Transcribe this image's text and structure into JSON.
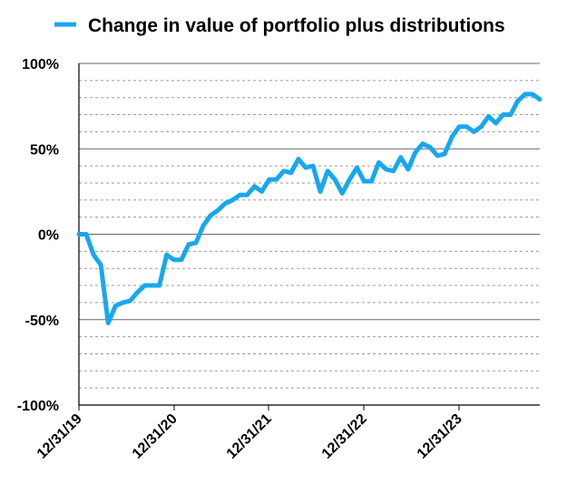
{
  "chart_data": {
    "type": "line",
    "title": "",
    "xlabel": "",
    "ylabel": "",
    "legend": {
      "position": "top",
      "entries": [
        "Change in value of portfolio plus distributions"
      ]
    },
    "series": [
      {
        "name": "Change in value of portfolio plus distributions",
        "color": "#18a7f0",
        "values": [
          0,
          0,
          -12,
          -18,
          -52,
          -42,
          -40,
          -39,
          -34,
          -30,
          -30,
          -30,
          -12,
          -15,
          -15,
          -6,
          -5,
          5,
          11,
          14,
          18,
          20,
          23,
          23,
          28,
          25,
          32,
          32,
          37,
          36,
          44,
          39,
          40,
          25,
          37,
          32,
          24,
          32,
          39,
          31,
          31,
          42,
          38,
          37,
          45,
          38,
          48,
          53,
          51,
          46,
          47,
          57,
          63,
          63,
          60,
          63,
          69,
          65,
          70,
          70,
          78,
          82,
          82,
          79
        ]
      }
    ],
    "x_tick_labels": [
      "12/31/19",
      "12/31/20",
      "12/31/21",
      "12/31/22",
      "12/31/23"
    ],
    "y_tick_labels": [
      "100%",
      "50%",
      "0%",
      "-50%",
      "-100%"
    ],
    "ylim": [
      -100,
      100
    ],
    "y_major_step": 50,
    "y_minor_step": 10,
    "grid": true,
    "colors": {
      "series": "#18a7f0",
      "major_grid": "#666666",
      "minor_grid": "#9a9a9a",
      "axis": "#000000"
    }
  }
}
